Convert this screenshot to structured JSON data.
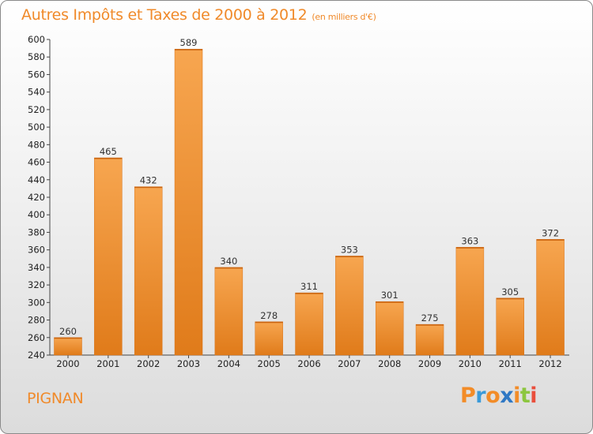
{
  "title": "Autres Impôts et Taxes de 2000 à 2012",
  "unit": "(en milliers d'€)",
  "town": "PIGNAN",
  "logo": {
    "text": "Proxiti",
    "letters": [
      {
        "ch": "P",
        "color": "#f28c28"
      },
      {
        "ch": "r",
        "color": "#3a9ad9"
      },
      {
        "ch": "o",
        "color": "#f28c28"
      },
      {
        "ch": "x",
        "color": "#2f78c4"
      },
      {
        "ch": "i",
        "color": "#f28c28"
      },
      {
        "ch": "t",
        "color": "#8cc63f"
      },
      {
        "ch": "i",
        "color": "#e94e3c"
      }
    ]
  },
  "colors": {
    "accent": "#f08a2a",
    "bar_top": "#f7a650",
    "bar_bottom": "#e07b1a"
  },
  "chart_data": {
    "type": "bar",
    "categories": [
      "2000",
      "2001",
      "2002",
      "2003",
      "2004",
      "2005",
      "2006",
      "2007",
      "2008",
      "2009",
      "2010",
      "2011",
      "2012"
    ],
    "values": [
      260,
      465,
      432,
      589,
      340,
      278,
      311,
      353,
      301,
      275,
      363,
      305,
      372
    ],
    "ylim": [
      240,
      600
    ],
    "yticks": [
      240,
      260,
      280,
      300,
      320,
      340,
      360,
      380,
      400,
      420,
      440,
      460,
      480,
      500,
      520,
      540,
      560,
      580,
      600
    ],
    "grid": false,
    "xlabel": "",
    "ylabel": ""
  }
}
